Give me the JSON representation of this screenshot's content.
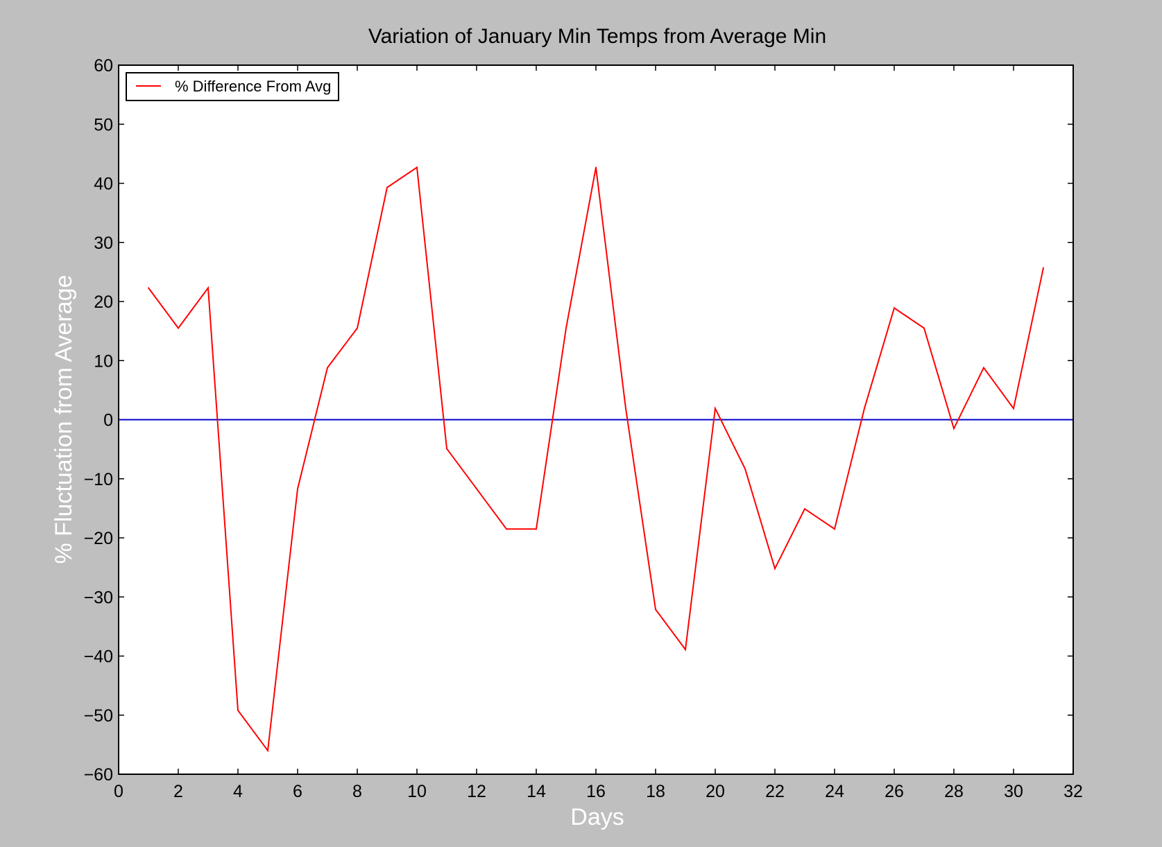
{
  "chart_data": {
    "type": "line",
    "title": "Variation of January Min Temps from Average Min",
    "xlabel": "Days",
    "ylabel": "% Fluctuation from Average",
    "xlim": [
      0,
      32
    ],
    "ylim": [
      -60,
      60
    ],
    "x_ticks": [
      0,
      2,
      4,
      6,
      8,
      10,
      12,
      14,
      16,
      18,
      20,
      22,
      24,
      26,
      28,
      30,
      32
    ],
    "y_ticks": [
      60,
      50,
      40,
      30,
      20,
      10,
      0,
      -10,
      -20,
      -30,
      -40,
      -50,
      -60
    ],
    "x_tick_labels": [
      "0",
      "2",
      "4",
      "6",
      "8",
      "10",
      "12",
      "14",
      "16",
      "18",
      "20",
      "22",
      "24",
      "26",
      "28",
      "30",
      "32"
    ],
    "y_tick_labels": [
      "60",
      "50",
      "40",
      "30",
      "20",
      "10",
      "0",
      "−10",
      "−20",
      "−30",
      "−40",
      "−50",
      "−60"
    ],
    "grid": false,
    "legend": {
      "position": "top-left",
      "entries": [
        "% Difference From Avg"
      ]
    },
    "series": [
      {
        "name": "% Difference From Avg",
        "color": "#ff0000",
        "x": [
          1,
          2,
          3,
          4,
          5,
          6,
          7,
          8,
          9,
          10,
          11,
          12,
          13,
          14,
          15,
          16,
          17,
          18,
          19,
          20,
          21,
          22,
          23,
          24,
          25,
          26,
          27,
          28,
          29,
          30,
          31
        ],
        "y": [
          22.3,
          15.5,
          22.3,
          -49.2,
          -56.0,
          -11.7,
          8.8,
          15.5,
          39.3,
          42.7,
          -4.9,
          -11.7,
          -18.5,
          -18.5,
          15.5,
          42.7,
          1.9,
          -32.1,
          -38.9,
          1.9,
          -8.3,
          -25.2,
          -15.1,
          -18.5,
          1.9,
          18.9,
          15.5,
          -1.5,
          8.8,
          1.9,
          25.7
        ]
      }
    ],
    "reference_line": {
      "y": 0,
      "color": "#0000cc"
    }
  }
}
